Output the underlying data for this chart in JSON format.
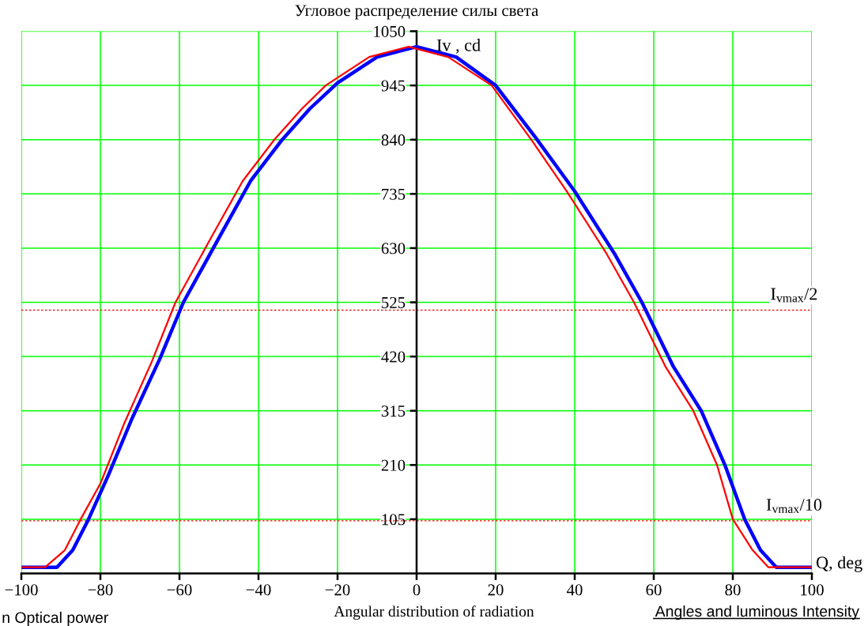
{
  "chart_data": {
    "type": "line",
    "title": "Угловое распределение силы света",
    "xlabel": "Q, deg",
    "ylabel": "Iv , cd",
    "series": [
      {
        "color": "#0000ff",
        "x": [
          -100,
          -91,
          -87,
          -83,
          -78,
          -72,
          -65,
          -59,
          -50,
          -42,
          -34,
          -27,
          -20,
          -10,
          0,
          10,
          20,
          30,
          40,
          50,
          57,
          65,
          72,
          78,
          83,
          87,
          91,
          100
        ],
        "values": [
          12,
          12,
          45,
          105,
          190,
          300,
          415,
          525,
          650,
          760,
          840,
          900,
          950,
          1000,
          1020,
          1000,
          945,
          845,
          740,
          620,
          525,
          400,
          315,
          210,
          105,
          45,
          12,
          12
        ]
      },
      {
        "color": "#ff0000",
        "x": [
          -100,
          -94,
          -89,
          -85,
          -80,
          -74,
          -67,
          -61,
          -52,
          -44,
          -36,
          -29,
          -23,
          -12,
          -2,
          8,
          19,
          29,
          38,
          48,
          55,
          63,
          70,
          76,
          80,
          85,
          89,
          100
        ],
        "values": [
          12,
          12,
          45,
          105,
          174,
          290,
          410,
          525,
          650,
          760,
          840,
          900,
          945,
          1000,
          1020,
          1000,
          945,
          840,
          740,
          620,
          525,
          400,
          315,
          210,
          105,
          45,
          12,
          12
        ]
      }
    ],
    "xlim": [
      -100,
      100
    ],
    "xticks": [
      {
        "value": -100,
        "label": "−100"
      },
      {
        "value": -80,
        "label": "−80"
      },
      {
        "value": -60,
        "label": "−60"
      },
      {
        "value": -40,
        "label": "−40"
      },
      {
        "value": -20,
        "label": "−20"
      },
      0,
      20,
      40,
      60,
      80,
      100
    ],
    "ylim": [
      0,
      1050
    ],
    "yticks": [
      105,
      210,
      315,
      420,
      525,
      630,
      735,
      840,
      945,
      1050
    ],
    "grid": true,
    "marker": "none",
    "line_style": "solid",
    "legend": false,
    "ref_lines": [
      {
        "axis": "y",
        "value": 510,
        "label": "I$_{vmax}$/2",
        "color": "#ff0000",
        "line_style": "dotted"
      },
      {
        "axis": "y",
        "value": 102,
        "label": "I$_{vmax}$/10",
        "color": "#ff0000",
        "line_style": "dotted"
      }
    ],
    "annotations": [
      "Angular distribution of radiation",
      "n Optical power",
      "Angles and luminous Intensity"
    ]
  }
}
